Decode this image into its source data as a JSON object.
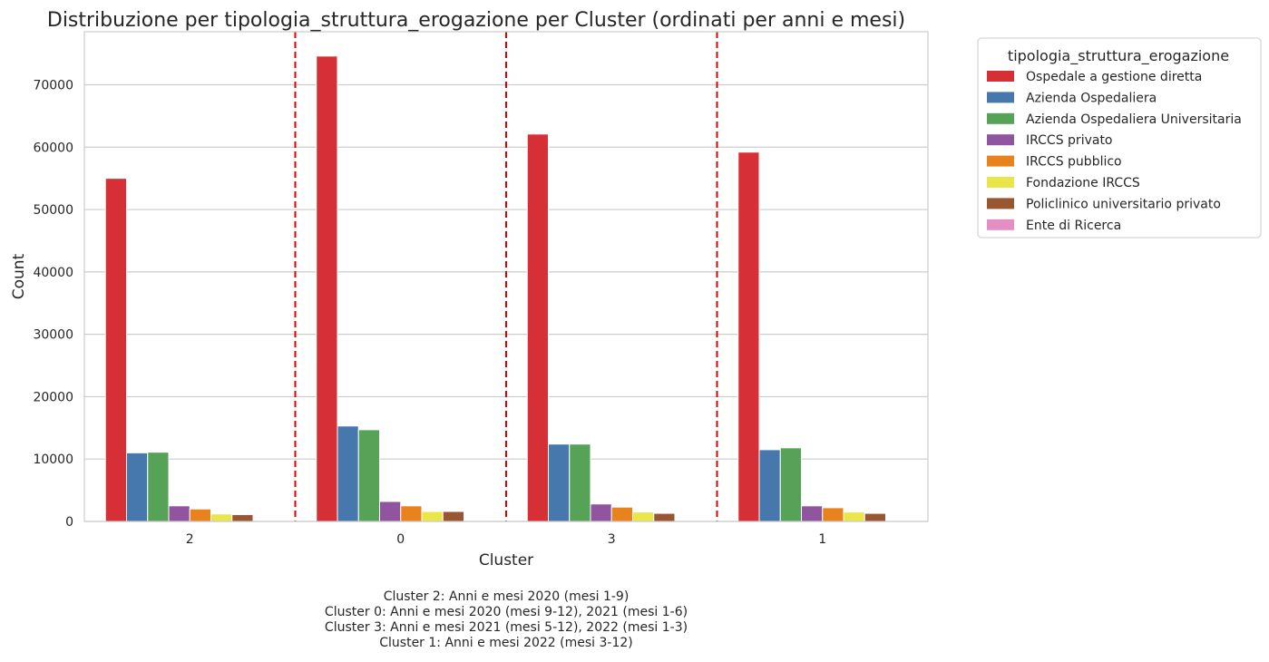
{
  "chart_data": {
    "type": "bar",
    "title": "Distribuzione per tipologia_struttura_erogazione per Cluster (ordinati per anni e mesi)",
    "xlabel": "Cluster",
    "ylabel": "Count",
    "categories": [
      "2",
      "0",
      "3",
      "1"
    ],
    "ylim": [
      0,
      78500
    ],
    "yticks": [
      0,
      10000,
      20000,
      30000,
      40000,
      50000,
      60000,
      70000
    ],
    "grid": "horizontal",
    "legend": {
      "title": "tipologia_struttura_erogazione",
      "placement": "outside-top-right"
    },
    "series": [
      {
        "name": "Ospedale a gestione diretta",
        "color": "#d62f35",
        "values": [
          55000,
          74600,
          62100,
          59200
        ]
      },
      {
        "name": "Azienda Ospedaliera",
        "color": "#4678ad",
        "values": [
          11000,
          15300,
          12400,
          11500
        ]
      },
      {
        "name": "Azienda Ospedaliera Universitaria",
        "color": "#56a257",
        "values": [
          11100,
          14700,
          12400,
          11800
        ]
      },
      {
        "name": "IRCCS privato",
        "color": "#91549f",
        "values": [
          2500,
          3200,
          2800,
          2500
        ]
      },
      {
        "name": "IRCCS pubblico",
        "color": "#e8821d",
        "values": [
          2000,
          2500,
          2300,
          2200
        ]
      },
      {
        "name": "Fondazione IRCCS",
        "color": "#e9e64a",
        "values": [
          1200,
          1600,
          1500,
          1500
        ]
      },
      {
        "name": "Policlinico universitario privato",
        "color": "#985632",
        "values": [
          1100,
          1600,
          1300,
          1300
        ]
      },
      {
        "name": "Ente di Ricerca",
        "color": "#e48fc4",
        "values": [
          0,
          0,
          0,
          0
        ]
      }
    ],
    "separators": {
      "color": "#e00000",
      "style": "dashed",
      "between_categories": [
        [
          0,
          1
        ],
        [
          1,
          2
        ],
        [
          2,
          3
        ]
      ]
    },
    "caption_lines": [
      "Cluster 2: Anni e mesi 2020 (mesi 1-9)",
      "Cluster 0: Anni e mesi 2020 (mesi 9-12), 2021 (mesi 1-6)",
      "Cluster 3: Anni e mesi 2021 (mesi 5-12), 2022 (mesi 1-3)",
      "Cluster 1: Anni e mesi 2022 (mesi 3-12)"
    ]
  }
}
